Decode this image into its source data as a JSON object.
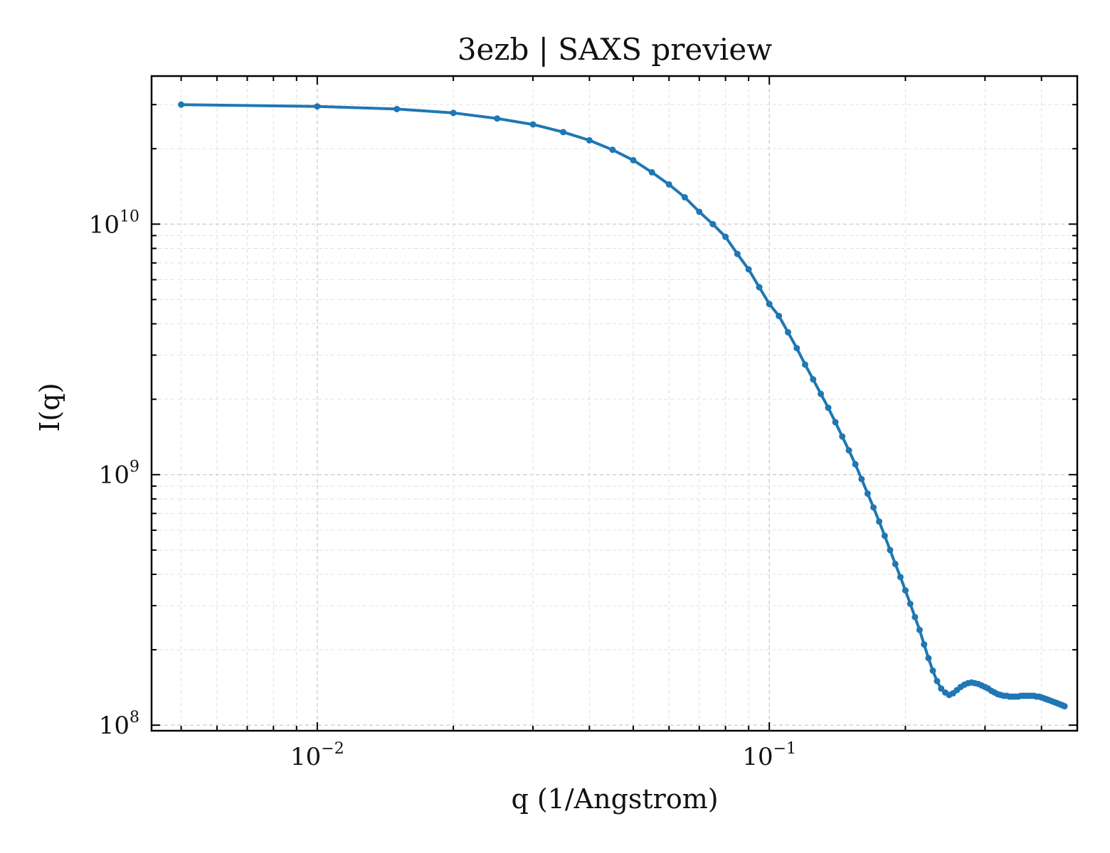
{
  "chart_data": {
    "type": "line",
    "title": "3ezb | SAXS preview",
    "xlabel": "q (1/Angstrom)",
    "ylabel": "I(q)",
    "xscale": "log",
    "yscale": "log",
    "xlim": [
      0.0043,
      0.48
    ],
    "ylim": [
      95000000.0,
      39000000000.0
    ],
    "grid": true,
    "legend": "none",
    "color": "#1f77b4",
    "x_ticks": [
      {
        "value": 0.01,
        "base": "10",
        "exp": "−2"
      },
      {
        "value": 0.1,
        "base": "10",
        "exp": "−1"
      }
    ],
    "y_ticks": [
      {
        "value": 100000000.0,
        "base": "10",
        "exp": "8"
      },
      {
        "value": 1000000000.0,
        "base": "10",
        "exp": "9"
      },
      {
        "value": 10000000000.0,
        "base": "10",
        "exp": "10"
      }
    ],
    "series": [
      {
        "x": [
          0.005,
          0.01,
          0.015,
          0.02,
          0.025,
          0.03,
          0.035,
          0.04,
          0.045,
          0.05,
          0.055,
          0.06,
          0.065,
          0.07,
          0.075,
          0.08,
          0.085,
          0.09,
          0.095,
          0.1,
          0.105,
          0.11,
          0.115,
          0.12,
          0.125,
          0.13,
          0.135,
          0.14,
          0.145,
          0.15,
          0.155,
          0.16,
          0.165,
          0.17,
          0.175,
          0.18,
          0.185,
          0.19,
          0.195,
          0.2,
          0.205,
          0.21,
          0.215,
          0.22,
          0.225,
          0.23,
          0.235,
          0.24,
          0.245,
          0.25,
          0.255,
          0.26,
          0.265,
          0.27,
          0.275,
          0.28,
          0.285,
          0.29,
          0.295,
          0.3,
          0.305,
          0.31,
          0.315,
          0.32,
          0.325,
          0.33,
          0.335,
          0.34,
          0.345,
          0.35,
          0.355,
          0.36,
          0.365,
          0.37,
          0.375,
          0.38,
          0.385,
          0.39,
          0.395,
          0.4,
          0.405,
          0.41,
          0.415,
          0.42,
          0.425,
          0.43,
          0.435,
          0.44,
          0.445,
          0.45
        ],
        "y": [
          30000000000.0,
          29500000000.0,
          28800000000.0,
          27800000000.0,
          26400000000.0,
          25000000000.0,
          23300000000.0,
          21600000000.0,
          19800000000.0,
          18000000000.0,
          16100000000.0,
          14400000000.0,
          12800000000.0,
          11200000000.0,
          10000000000.0,
          8900000000.0,
          7600000000.0,
          6600000000.0,
          5600000000.0,
          4800000000.0,
          4300000000.0,
          3700000000.0,
          3200000000.0,
          2750000000.0,
          2400000000.0,
          2100000000.0,
          1850000000.0,
          1620000000.0,
          1420000000.0,
          1250000000.0,
          1100000000.0,
          960000000.0,
          840000000.0,
          740000000.0,
          650000000.0,
          570000000.0,
          500000000.0,
          440000000.0,
          390000000.0,
          345000000.0,
          305000000.0,
          270000000.0,
          240000000.0,
          210000000.0,
          185000000.0,
          165000000.0,
          150000000.0,
          140000000.0,
          135000000.0,
          132000000.0,
          134000000.0,
          138000000.0,
          142000000.0,
          145000000.0,
          147000000.0,
          148000000.0,
          147000000.0,
          146000000.0,
          144000000.0,
          142000000.0,
          140000000.0,
          137000000.0,
          135000000.0,
          133000000.0,
          132000000.0,
          131000000.0,
          131000000.0,
          130000000.0,
          130000000.0,
          130000000.0,
          130000000.0,
          131000000.0,
          131000000.0,
          131000000.0,
          131000000.0,
          131000000.0,
          131000000.0,
          130000000.0,
          130000000.0,
          129000000.0,
          128000000.0,
          127000000.0,
          126000000.0,
          125000000.0,
          124000000.0,
          123000000.0,
          122000000.0,
          121000000.0,
          120000000.0,
          119000000.0
        ]
      }
    ]
  }
}
